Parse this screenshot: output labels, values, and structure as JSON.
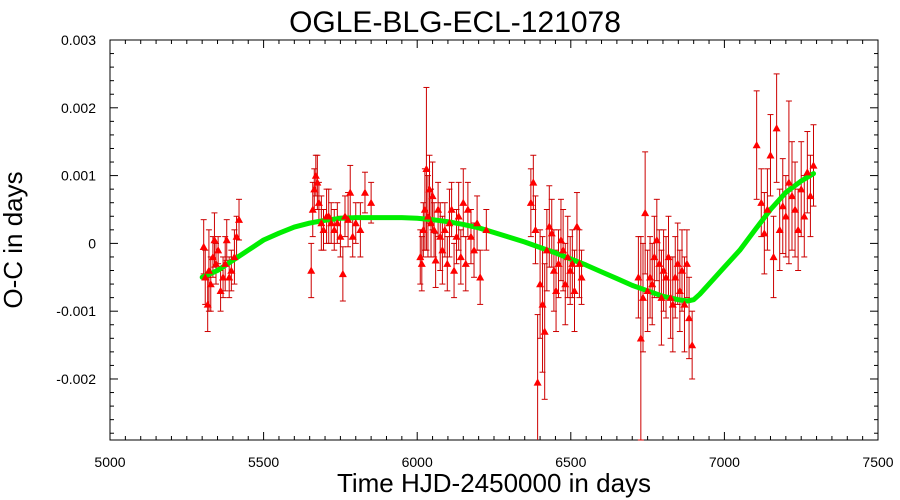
{
  "chart_data": {
    "type": "scatter",
    "title": "OGLE-BLG-ECL-121078",
    "xlabel": "Time HJD-2450000 in days",
    "ylabel": "O-C in days",
    "xlim": [
      5000,
      7500
    ],
    "ylim": [
      -0.0029,
      0.003
    ],
    "x_ticks": [
      5000,
      5500,
      6000,
      6500,
      7000,
      7500
    ],
    "x_tick_labels": [
      "5000",
      "5500",
      "6000",
      "6500",
      "7000",
      "7500"
    ],
    "y_ticks": [
      -0.002,
      -0.001,
      0,
      0.001,
      0.002,
      0.003
    ],
    "y_tick_labels": [
      "-0.002",
      "-0.001",
      "0",
      "0.001",
      "0.002",
      "0.003"
    ],
    "grid": false,
    "colors": {
      "points": "#ff0000",
      "errorbars": "#cc0000",
      "fit": "#00ee00"
    },
    "series": [
      {
        "marker": "triangle",
        "x": [
          5305,
          5310,
          5318,
          5322,
          5328,
          5335,
          5340,
          5345,
          5352,
          5360,
          5368,
          5375,
          5380,
          5388,
          5395,
          5405,
          5412,
          5420,
          5655,
          5660,
          5665,
          5670,
          5675,
          5680,
          5688,
          5695,
          5705,
          5712,
          5720,
          5730,
          5740,
          5750,
          5758,
          5765,
          5775,
          5782,
          5790,
          5800,
          5815,
          5830,
          5850,
          6010,
          6015,
          6020,
          6025,
          6030,
          6035,
          6040,
          6045,
          6050,
          6055,
          6060,
          6068,
          6075,
          6082,
          6090,
          6098,
          6105,
          6112,
          6120,
          6128,
          6135,
          6142,
          6150,
          6158,
          6165,
          6175,
          6185,
          6195,
          6205,
          6225,
          6370,
          6378,
          6385,
          6392,
          6400,
          6408,
          6415,
          6422,
          6430,
          6438,
          6445,
          6452,
          6460,
          6468,
          6475,
          6482,
          6490,
          6498,
          6505,
          6512,
          6520,
          6528,
          6535,
          6720,
          6728,
          6735,
          6742,
          6750,
          6758,
          6765,
          6772,
          6780,
          6788,
          6795,
          6802,
          6810,
          6818,
          6825,
          6832,
          6840,
          6848,
          6855,
          6862,
          6870,
          6878,
          6885,
          6895,
          7105,
          7120,
          7130,
          7140,
          7150,
          7160,
          7170,
          7180,
          7190,
          7200,
          7210,
          7220,
          7230,
          7240,
          7250,
          7260,
          7270,
          7280,
          7290
        ],
        "y": [
          -5e-05,
          -0.0005,
          -0.0009,
          -0.0004,
          -0.0006,
          -0.0002,
          5e-05,
          -0.0003,
          -0.0001,
          -0.0007,
          -0.0005,
          -0.0003,
          5e-05,
          -0.0005,
          -0.0004,
          -0.0002,
          0.0001,
          0.00035,
          -0.0004,
          0.0005,
          0.0008,
          0.001,
          0.0009,
          0.0006,
          0.0003,
          0.0002,
          0.0004,
          0.0004,
          0.0003,
          0.0002,
          0.0003,
          0.0001,
          -0.00045,
          0.0004,
          0.00035,
          0.00075,
          0.0001,
          0.0003,
          0.0002,
          0.00075,
          0.0006,
          -0.0002,
          -0.0003,
          0.0002,
          0.0005,
          0.0011,
          0.0004,
          0.0008,
          0.0003,
          0.0007,
          0.0002,
          -0.00025,
          0.0005,
          0.0001,
          -0.0001,
          0.0002,
          -0.0003,
          0.0003,
          0.0005,
          -0.0004,
          0.0001,
          0.0004,
          -0.0002,
          0.0006,
          -0.0003,
          0.0005,
          0.0001,
          -0.0001,
          0.0003,
          -0.0005,
          0.0002,
          0.0006,
          0.0009,
          0.0002,
          -0.00205,
          -0.0006,
          -0.0009,
          -0.0013,
          -0.0001,
          0.00025,
          0.00015,
          -0.0004,
          -0.0007,
          -0.0003,
          5e-05,
          -0.0001,
          -0.0006,
          -0.0002,
          -0.0004,
          -0.0003,
          -0.0007,
          0.00025,
          -0.0003,
          -0.0005,
          -0.0005,
          -0.0014,
          -0.0008,
          0.00045,
          -0.0007,
          -0.0005,
          -0.0006,
          -0.0002,
          5e-05,
          -0.0003,
          -0.0008,
          -0.0004,
          -0.0005,
          -0.0002,
          -0.0008,
          -0.0009,
          -0.0005,
          -0.0003,
          -0.0007,
          -0.0004,
          -0.0009,
          -0.0003,
          -0.0011,
          -0.0015,
          0.00145,
          0.0006,
          0.00015,
          0.0005,
          0.0013,
          -0.0002,
          0.0017,
          0.0002,
          0.00055,
          0.0004,
          0.0009,
          0.0007,
          0.0005,
          0.0002,
          0.0008,
          0.0004,
          0.00105,
          0.0007,
          0.00115
        ],
        "yerr": [
          0.0004,
          0.0004,
          0.0004,
          0.0006,
          0.0004,
          0.0003,
          0.0004,
          0.0003,
          0.0002,
          0.0003,
          0.0003,
          0.0004,
          0.0003,
          0.0003,
          0.0003,
          0.0004,
          0.0003,
          0.0003,
          0.0004,
          0.0004,
          0.0003,
          0.0003,
          0.0004,
          0.0003,
          0.0004,
          0.0003,
          0.0004,
          0.0004,
          0.0003,
          0.0003,
          0.0003,
          0.0003,
          0.0004,
          0.0003,
          0.0004,
          0.0004,
          0.0003,
          0.0003,
          0.0004,
          0.0003,
          0.0003,
          0.0004,
          0.0004,
          0.0004,
          0.0006,
          0.0012,
          0.0006,
          0.0005,
          0.0005,
          0.0005,
          0.0004,
          0.0004,
          0.0004,
          0.0005,
          0.0005,
          0.0004,
          0.0004,
          0.0005,
          0.0004,
          0.0004,
          0.0004,
          0.0005,
          0.0004,
          0.0005,
          0.0004,
          0.0004,
          0.0004,
          0.0004,
          0.0004,
          0.0004,
          0.0003,
          0.0005,
          0.0004,
          0.0005,
          0.001,
          0.0008,
          0.001,
          0.001,
          0.0006,
          0.0006,
          0.0005,
          0.0006,
          0.0006,
          0.0005,
          0.0006,
          0.0006,
          0.0006,
          0.0006,
          0.0005,
          0.0005,
          0.0006,
          0.0005,
          0.0005,
          0.0004,
          0.0006,
          0.0015,
          0.0008,
          0.0009,
          0.0006,
          0.0006,
          0.0006,
          0.0006,
          0.0006,
          0.0005,
          0.0007,
          0.0006,
          0.0006,
          0.0006,
          0.0006,
          0.0007,
          0.0006,
          0.0006,
          0.0006,
          0.0006,
          0.0007,
          0.0005,
          0.0006,
          0.0005,
          0.0008,
          0.0005,
          0.0006,
          0.0006,
          0.0006,
          0.0006,
          0.0008,
          0.0006,
          0.0007,
          0.0006,
          0.0012,
          0.0008,
          0.0007,
          0.0006,
          0.0007,
          0.0006,
          0.0006,
          0.0006,
          0.0006
        ]
      },
      {
        "type": "line",
        "x": [
          5300,
          5350,
          5400,
          5450,
          5500,
          5550,
          5600,
          5650,
          5700,
          5750,
          5800,
          5850,
          5900,
          5950,
          6000,
          6050,
          6100,
          6150,
          6200,
          6250,
          6300,
          6350,
          6400,
          6450,
          6500,
          6550,
          6600,
          6650,
          6700,
          6750,
          6800,
          6850,
          6880,
          6900,
          6920,
          6950,
          7000,
          7050,
          7100,
          7150,
          7200,
          7250,
          7290
        ],
        "y": [
          -0.0005,
          -0.0004,
          -0.00025,
          -0.0001,
          5e-05,
          0.00015,
          0.00024,
          0.0003,
          0.00034,
          0.00037,
          0.00038,
          0.00038,
          0.00038,
          0.00038,
          0.00037,
          0.00035,
          0.00032,
          0.00028,
          0.00023,
          0.00016,
          9e-05,
          2e-05,
          -6e-05,
          -0.00014,
          -0.00023,
          -0.00032,
          -0.00042,
          -0.00052,
          -0.00062,
          -0.0007,
          -0.00078,
          -0.00083,
          -0.00085,
          -0.00083,
          -0.00075,
          -0.0006,
          -0.00035,
          -0.0001,
          0.0002,
          0.0005,
          0.00075,
          0.00092,
          0.00103
        ]
      }
    ]
  }
}
